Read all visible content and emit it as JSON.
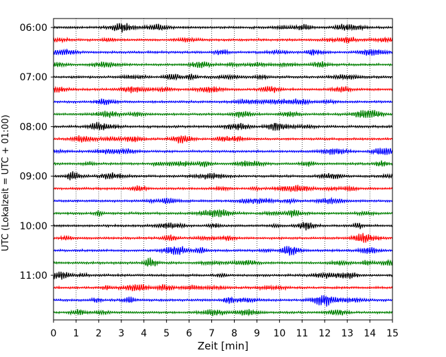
{
  "chart_data": {
    "type": "line",
    "title": "",
    "xlabel": "Zeit  [min]",
    "ylabel": "UTC (Lokalzeit = UTC + 01:00)",
    "xlim": [
      0,
      15
    ],
    "x_ticks": [
      "0",
      "1",
      "2",
      "3",
      "4",
      "5",
      "6",
      "7",
      "8",
      "9",
      "10",
      "11",
      "12",
      "13",
      "14",
      "15"
    ],
    "y_ticks": [
      "06:00",
      "07:00",
      "08:00",
      "09:00",
      "10:00",
      "11:00"
    ],
    "grid": "vertical dotted at each minute",
    "start_time": "06:00",
    "minutes_per_line": 15,
    "line_count": 24,
    "color_cycle": [
      "#000000",
      "#ff0000",
      "#0000ff",
      "#008000"
    ],
    "series_description": "24 seismogram traces, one per 15-minute interval from 06:00 to 11:45 UTC, colours cycling black, red, blue, green"
  }
}
